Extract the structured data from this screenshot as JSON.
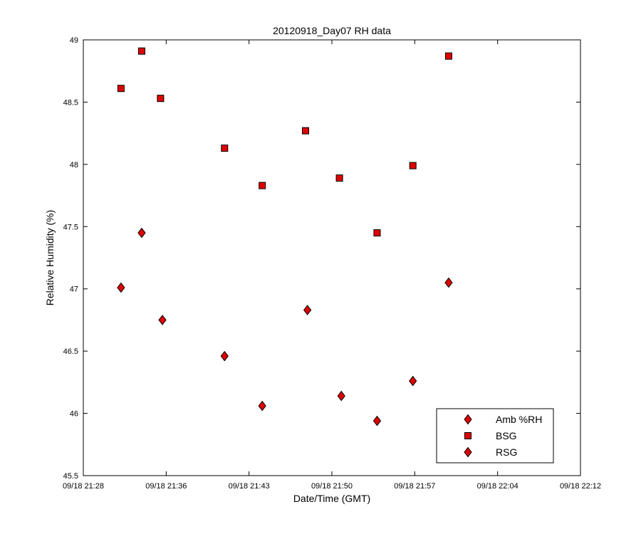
{
  "chart_data": {
    "type": "scatter",
    "title": "20120918_Day07 RH data",
    "xlabel": "Date/Time (GMT)",
    "ylabel": "Relative Humidity (%)",
    "x_ticks": [
      "09/18 21:28",
      "09/18 21:36",
      "09/18 21:43",
      "09/18 21:50",
      "09/18 21:57",
      "09/18 22:04",
      "09/18 22:12"
    ],
    "y_ticks": [
      "45.5",
      "46",
      "46.5",
      "47",
      "47.5",
      "48",
      "48.5",
      "49"
    ],
    "xlim": [
      "09/18 21:28:00",
      "09/18 22:12:00"
    ],
    "ylim": [
      45.5,
      49
    ],
    "grid": false,
    "legend_position": "bottom-right",
    "marker_color": "#e00000",
    "series": [
      {
        "name": "Amb %RH",
        "marker": "diamond",
        "points": []
      },
      {
        "name": "BSG",
        "marker": "square",
        "points": [
          {
            "t": "21:31:20",
            "y": 48.61
          },
          {
            "t": "21:33:10",
            "y": 48.91
          },
          {
            "t": "21:34:50",
            "y": 48.53
          },
          {
            "t": "21:40:30",
            "y": 48.13
          },
          {
            "t": "21:43:50",
            "y": 47.83
          },
          {
            "t": "21:47:40",
            "y": 48.27
          },
          {
            "t": "21:50:40",
            "y": 47.89
          },
          {
            "t": "21:54:00",
            "y": 47.45
          },
          {
            "t": "21:57:10",
            "y": 47.99
          },
          {
            "t": "22:00:20",
            "y": 48.87
          }
        ]
      },
      {
        "name": "RSG",
        "marker": "diamond",
        "points": [
          {
            "t": "21:31:20",
            "y": 47.01
          },
          {
            "t": "21:33:10",
            "y": 47.45
          },
          {
            "t": "21:35:00",
            "y": 46.75
          },
          {
            "t": "21:40:30",
            "y": 46.46
          },
          {
            "t": "21:43:50",
            "y": 46.06
          },
          {
            "t": "21:47:50",
            "y": 46.83
          },
          {
            "t": "21:50:50",
            "y": 46.14
          },
          {
            "t": "21:54:00",
            "y": 45.94
          },
          {
            "t": "21:57:10",
            "y": 46.26
          },
          {
            "t": "22:00:20",
            "y": 47.05
          }
        ]
      }
    ]
  }
}
